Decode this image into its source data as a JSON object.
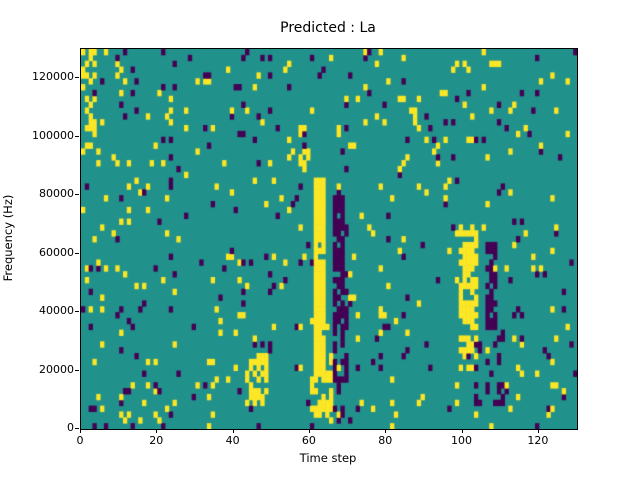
{
  "chart_data": {
    "type": "heatmap",
    "title": "Predicted : La",
    "xlabel": "Time step",
    "ylabel": "Frequency (Hz)",
    "xlim": [
      0,
      130
    ],
    "ylim": [
      0,
      130000
    ],
    "x_ticks": [
      "0",
      "20",
      "40",
      "60",
      "80",
      "100",
      "120"
    ],
    "x_tick_values": [
      0,
      20,
      40,
      60,
      80,
      100,
      120
    ],
    "y_ticks": [
      "0",
      "20000",
      "40000",
      "60000",
      "80000",
      "100000",
      "120000"
    ],
    "y_tick_values": [
      0,
      20000,
      40000,
      60000,
      80000,
      100000,
      120000
    ],
    "grid": {
      "cols": 130,
      "rows": 65,
      "cell_height_hz": 2000
    },
    "value_colors": {
      "0": "#440154",
      "1": "#21918c",
      "2": "#fde725"
    },
    "value_meaning": {
      "0": "low",
      "1": "background",
      "2": "high"
    },
    "legend": "none",
    "clusters": [
      {
        "x0": 61,
        "x1": 64,
        "f0": 18000,
        "f1": 86000,
        "value": 2,
        "fill": 0.92
      },
      {
        "x0": 60,
        "x1": 66,
        "f0": 4000,
        "f1": 20000,
        "value": 2,
        "fill": 0.55
      },
      {
        "x0": 66,
        "x1": 70,
        "f0": 4000,
        "f1": 82000,
        "value": 0,
        "fill": 0.45
      },
      {
        "x0": 66,
        "x1": 69,
        "f0": 38000,
        "f1": 80000,
        "value": 0,
        "fill": 0.7
      },
      {
        "x0": 99,
        "x1": 104,
        "f0": 20000,
        "f1": 70000,
        "value": 2,
        "fill": 0.5
      },
      {
        "x0": 100,
        "x1": 103,
        "f0": 38000,
        "f1": 64000,
        "value": 2,
        "fill": 0.75
      },
      {
        "x0": 106,
        "x1": 109,
        "f0": 34000,
        "f1": 66000,
        "value": 0,
        "fill": 0.65
      },
      {
        "x0": 103,
        "x1": 111,
        "f0": 8000,
        "f1": 34000,
        "value": 0,
        "fill": 0.22
      },
      {
        "x0": 43,
        "x1": 49,
        "f0": 8000,
        "f1": 26000,
        "value": 2,
        "fill": 0.55
      },
      {
        "x0": 0,
        "x1": 4,
        "f0": 94000,
        "f1": 130000,
        "value": 2,
        "fill": 0.28
      },
      {
        "x0": 57,
        "x1": 59,
        "f0": 90000,
        "f1": 106000,
        "value": 2,
        "fill": 0.35
      },
      {
        "x0": 10,
        "x1": 22,
        "f0": 2000,
        "f1": 16000,
        "value": 2,
        "fill": 0.15
      }
    ],
    "scatter": {
      "seed": 42,
      "density_high": 0.035,
      "density_low": 0.025
    }
  }
}
